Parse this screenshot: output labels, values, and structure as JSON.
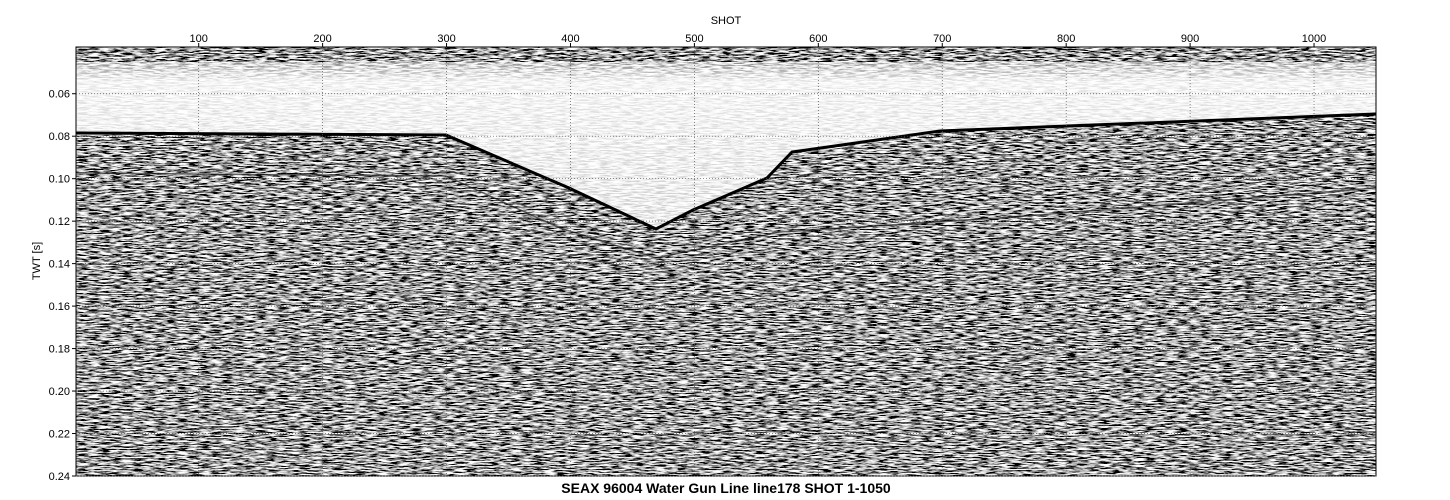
{
  "chart_data": {
    "type": "seismic",
    "title": "SEAX 96004 Water Gun Line line178 SHOT 1-1050",
    "x_label": "SHOT",
    "y_label": "TWT [s]",
    "xlim": [
      1,
      1050
    ],
    "xticks": [
      100,
      200,
      300,
      400,
      500,
      600,
      700,
      800,
      900,
      1000
    ],
    "ylim": [
      0.038,
      0.24
    ],
    "yticks": [
      0.06,
      0.08,
      {
        "value": 0.1,
        "label": "0.10"
      },
      0.12,
      0.14,
      0.16,
      0.18,
      {
        "value": 0.2,
        "label": "0.20"
      },
      0.22,
      0.24
    ],
    "y_reversed": true,
    "grid": true
  }
}
